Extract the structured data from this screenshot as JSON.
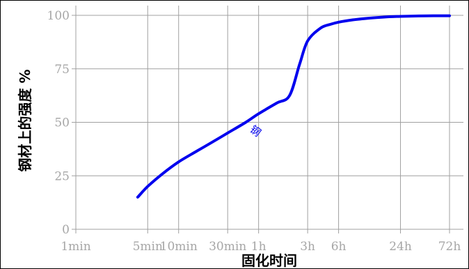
{
  "chart_data": {
    "type": "line",
    "title": "",
    "xlabel": "固化时间",
    "ylabel": "钢材上的强度 %",
    "x_scale": "log",
    "x_unit": "minutes",
    "xlim": [
      1,
      4320
    ],
    "ylim": [
      0,
      100
    ],
    "x_ticks": [
      {
        "value": 1,
        "label": "1min"
      },
      {
        "value": 5,
        "label": "5min"
      },
      {
        "value": 10,
        "label": "10min"
      },
      {
        "value": 30,
        "label": "30min"
      },
      {
        "value": 60,
        "label": "1h"
      },
      {
        "value": 180,
        "label": "3h"
      },
      {
        "value": 360,
        "label": "6h"
      },
      {
        "value": 1440,
        "label": "24h"
      },
      {
        "value": 4320,
        "label": "72h"
      }
    ],
    "y_ticks": [
      {
        "value": 0,
        "label": "0"
      },
      {
        "value": 25,
        "label": "25"
      },
      {
        "value": 50,
        "label": "50"
      },
      {
        "value": 75,
        "label": "75"
      },
      {
        "value": 100,
        "label": "100"
      }
    ],
    "grid": true,
    "series": [
      {
        "name": "钢",
        "color": "#0000ee",
        "x": [
          4,
          5,
          7,
          10,
          15,
          20,
          30,
          45,
          60,
          90,
          120,
          150,
          180,
          240,
          300,
          360,
          500,
          720,
          1000,
          1440,
          2160,
          3000,
          4320
        ],
        "y": [
          15,
          20,
          26,
          31.5,
          36.5,
          40,
          45,
          50,
          54,
          59,
          62.5,
          77,
          88,
          94,
          95.8,
          96.8,
          97.9,
          98.7,
          99.2,
          99.5,
          99.7,
          99.8,
          99.8
        ]
      }
    ]
  }
}
